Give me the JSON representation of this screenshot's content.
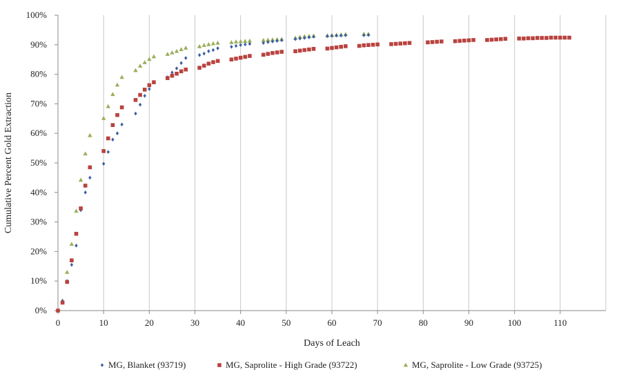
{
  "chart_data": {
    "type": "scatter",
    "xlabel": "Days of Leach",
    "ylabel": "Cumulative Percent Gold Extraction",
    "xlim": [
      0,
      120
    ],
    "ylim": [
      0,
      100
    ],
    "x_ticks": [
      0,
      10,
      20,
      30,
      40,
      50,
      60,
      70,
      80,
      90,
      100,
      110
    ],
    "y_ticks": [
      0,
      10,
      20,
      30,
      40,
      50,
      60,
      70,
      80,
      90,
      100
    ],
    "y_tick_labels": [
      "0%",
      "10%",
      "20%",
      "30%",
      "40%",
      "50%",
      "60%",
      "70%",
      "80%",
      "90%",
      "100%"
    ],
    "grid": "vertical",
    "legend_position": "bottom",
    "series": [
      {
        "name": "MG, Blanket (93719)",
        "color": "#3a5fa8",
        "marker": "diamond",
        "x": [
          0,
          1,
          2,
          3,
          4,
          5,
          6,
          7,
          10,
          11,
          12,
          13,
          14,
          17,
          18,
          19,
          20,
          24,
          25,
          26,
          27,
          28,
          31,
          32,
          33,
          34,
          35,
          38,
          39,
          40,
          41,
          42,
          45,
          46,
          47,
          48,
          49,
          52,
          53,
          54,
          55,
          56,
          59,
          60,
          61,
          62,
          63,
          67,
          68
        ],
        "y": [
          0,
          3.2,
          10,
          15.5,
          22,
          34,
          40,
          45,
          49.7,
          53.7,
          57.9,
          60,
          63,
          66.7,
          69.7,
          72.7,
          75,
          79,
          80.6,
          82,
          83.8,
          85.5,
          86.5,
          87,
          87.8,
          88.2,
          88.8,
          89.3,
          89.6,
          89.9,
          90.1,
          90.3,
          90.6,
          90.9,
          91.1,
          91.3,
          91.5,
          91.9,
          92.1,
          92.3,
          92.5,
          92.7,
          92.9,
          93,
          93.1,
          93.1,
          93.2,
          93.2,
          93.3
        ]
      },
      {
        "name": "MG, Saprolite - High Grade (93722)",
        "color": "#b8433f",
        "marker": "square",
        "x": [
          0,
          1,
          2,
          3,
          4,
          5,
          6,
          7,
          10,
          11,
          12,
          13,
          14,
          17,
          18,
          19,
          20,
          21,
          24,
          25,
          26,
          27,
          28,
          31,
          32,
          33,
          34,
          35,
          38,
          39,
          40,
          41,
          42,
          45,
          46,
          47,
          48,
          49,
          52,
          53,
          54,
          55,
          56,
          59,
          60,
          61,
          62,
          63,
          66,
          67,
          68,
          69,
          70,
          73,
          74,
          75,
          76,
          77,
          81,
          82,
          83,
          84,
          87,
          88,
          89,
          90,
          91,
          94,
          95,
          96,
          97,
          98,
          101,
          102,
          103,
          104,
          105,
          106,
          107,
          108,
          109,
          110,
          111,
          112
        ],
        "y": [
          0,
          2.7,
          9.7,
          17,
          26,
          34.6,
          42.3,
          48.5,
          54,
          58.3,
          62.8,
          66.2,
          68.8,
          71.3,
          73,
          74.8,
          76.3,
          77.3,
          78.7,
          79.5,
          80.2,
          81,
          81.6,
          82.2,
          82.9,
          83.6,
          84.1,
          84.5,
          85,
          85.3,
          85.6,
          85.9,
          86.2,
          86.6,
          86.9,
          87.2,
          87.4,
          87.6,
          87.8,
          88,
          88.2,
          88.4,
          88.6,
          88.7,
          88.9,
          89.1,
          89.3,
          89.5,
          89.6,
          89.8,
          89.9,
          90,
          90.1,
          90.2,
          90.3,
          90.4,
          90.5,
          90.6,
          90.8,
          90.9,
          91,
          91.1,
          91.2,
          91.3,
          91.4,
          91.5,
          91.6,
          91.6,
          91.7,
          91.8,
          91.9,
          92,
          92.1,
          92.1,
          92.2,
          92.2,
          92.3,
          92.3,
          92.3,
          92.4,
          92.4,
          92.4,
          92.4,
          92.4
        ]
      },
      {
        "name": "MG, Saprolite - Low Grade (93725)",
        "color": "#9aae5a",
        "marker": "triangle",
        "x": [
          0,
          1,
          2,
          3,
          4,
          5,
          6,
          7,
          10,
          11,
          12,
          13,
          14,
          17,
          18,
          19,
          20,
          21,
          24,
          25,
          26,
          27,
          28,
          31,
          32,
          33,
          34,
          35,
          38,
          39,
          40,
          41,
          42,
          45,
          46,
          47,
          48,
          49,
          52,
          53,
          54,
          55,
          56,
          59,
          60,
          61,
          62,
          63,
          67,
          68
        ],
        "y": [
          0,
          3.4,
          13,
          22.5,
          33.7,
          44.2,
          53.1,
          59.3,
          65.1,
          69.1,
          73.2,
          76.4,
          79,
          81.3,
          82.8,
          84,
          85.1,
          86,
          86.8,
          87.3,
          87.8,
          88.4,
          88.9,
          89.4,
          89.8,
          90.1,
          90.4,
          90.6,
          90.8,
          91,
          91.1,
          91.2,
          91.3,
          91.5,
          91.6,
          91.7,
          91.8,
          91.9,
          92.3,
          92.6,
          92.8,
          92.9,
          93,
          93.1,
          93.2,
          93.3,
          93.4,
          93.5,
          93.6,
          93.6
        ]
      }
    ]
  }
}
